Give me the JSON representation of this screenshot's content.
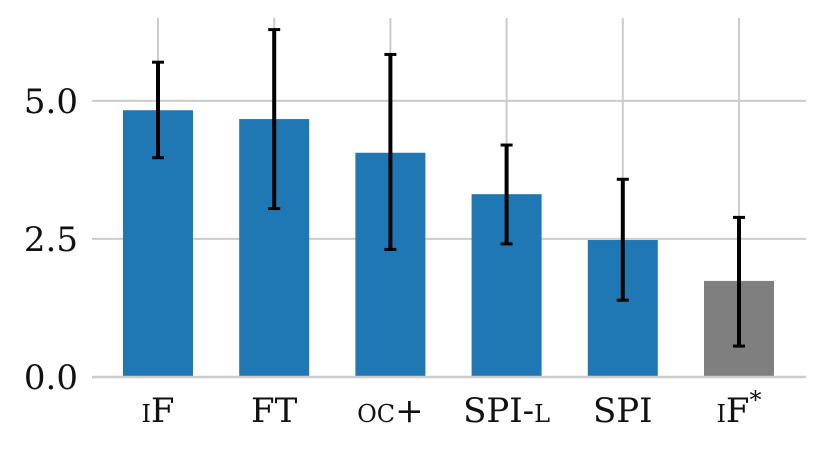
{
  "chart_data": {
    "type": "bar",
    "title": "",
    "xlabel": "",
    "ylabel": "",
    "categories": [
      "iF",
      "FT",
      "oc+",
      "SPI-l",
      "SPI",
      "iF*"
    ],
    "category_display": [
      {
        "text": "iF",
        "smallcaps": true,
        "sup": ""
      },
      {
        "text": "FT",
        "smallcaps": false,
        "sup": ""
      },
      {
        "text": "oc+",
        "smallcaps": true,
        "sup": ""
      },
      {
        "text": "SPI-l",
        "smallcaps": true,
        "sup": ""
      },
      {
        "text": "SPI",
        "smallcaps": false,
        "sup": ""
      },
      {
        "text": "iF",
        "smallcaps": true,
        "sup": "*"
      }
    ],
    "values": [
      4.83,
      4.67,
      4.06,
      3.31,
      2.48,
      1.74
    ],
    "error_low": [
      3.97,
      3.05,
      2.31,
      2.41,
      1.39,
      0.56
    ],
    "error_high": [
      5.7,
      6.29,
      5.84,
      4.2,
      3.58,
      2.89
    ],
    "bar_colors": [
      "#1f77b4",
      "#1f77b4",
      "#1f77b4",
      "#1f77b4",
      "#1f77b4",
      "#7f7f7f"
    ],
    "ylim": [
      0,
      6.5
    ],
    "yticks": [
      0.0,
      2.5,
      5.0
    ],
    "ytick_labels": [
      "0.0",
      "2.5",
      "5.0"
    ],
    "grid": true,
    "grid_color": "#cccccc",
    "axis_color": "#cccccc",
    "errorbar_color": "#000000"
  }
}
